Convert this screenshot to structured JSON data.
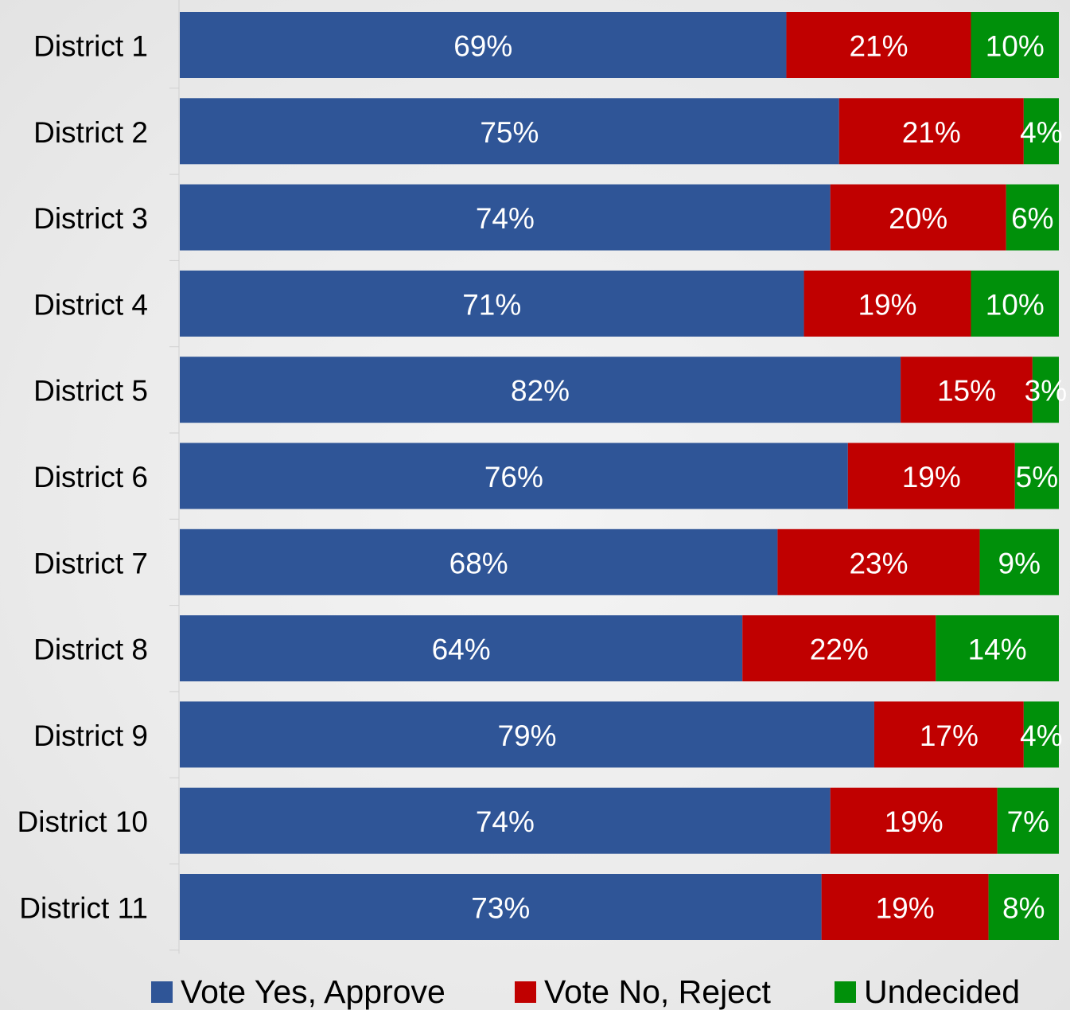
{
  "chart_data": {
    "type": "bar",
    "orientation": "horizontal",
    "stacked": "percent",
    "categories": [
      "District 1",
      "District 2",
      "District 3",
      "District 4",
      "District 5",
      "District 6",
      "District 7",
      "District 8",
      "District 9",
      "District 10",
      "District 11"
    ],
    "series": [
      {
        "name": "Vote Yes, Approve",
        "color": "#2f5597",
        "values": [
          69,
          75,
          74,
          71,
          82,
          76,
          68,
          64,
          79,
          74,
          73
        ],
        "labels": [
          "69%",
          "75%",
          "74%",
          "71%",
          "82%",
          "76%",
          "68%",
          "64%",
          "79%",
          "74%",
          "73%"
        ]
      },
      {
        "name": "Vote No, Reject",
        "color": "#c00000",
        "values": [
          21,
          21,
          20,
          19,
          15,
          19,
          23,
          22,
          17,
          19,
          19
        ],
        "labels": [
          "21%",
          "21%",
          "20%",
          "19%",
          "15%",
          "19%",
          "23%",
          "22%",
          "17%",
          "19%",
          "19%"
        ]
      },
      {
        "name": "Undecided",
        "color": "#00900a",
        "values": [
          10,
          4,
          6,
          10,
          3,
          5,
          9,
          14,
          4,
          7,
          8
        ],
        "labels": [
          "10%",
          "4%",
          "6%",
          "10%",
          "3%",
          "5%",
          "9%",
          "14%",
          "4%",
          "7%",
          "8%"
        ]
      }
    ],
    "xlim": [
      0,
      100
    ],
    "grid": false,
    "legend_position": "bottom"
  }
}
